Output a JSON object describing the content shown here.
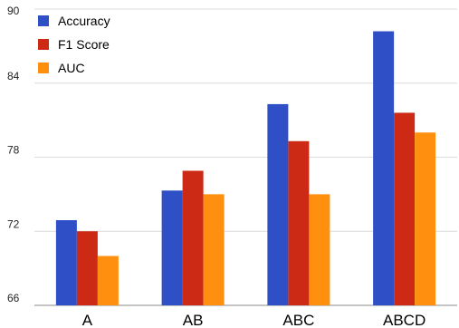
{
  "chart_data": {
    "type": "bar",
    "title": "",
    "xlabel": "",
    "ylabel": "",
    "categories": [
      "A",
      "AB",
      "ABC",
      "ABCD"
    ],
    "series": [
      {
        "name": "Accuracy",
        "color": "#2f4fc6",
        "values": [
          72.9,
          75.3,
          82.3,
          88.2
        ]
      },
      {
        "name": "F1 Score",
        "color": "#cc2a14",
        "values": [
          72.0,
          76.9,
          79.3,
          81.6
        ]
      },
      {
        "name": "AUC",
        "color": "#ff8f0e",
        "values": [
          70.0,
          75.0,
          75.0,
          80.0
        ]
      }
    ],
    "ylim": [
      66,
      90
    ],
    "yticks": [
      66,
      72,
      78,
      84,
      90
    ],
    "grid": true,
    "legend_position": "top-left"
  }
}
